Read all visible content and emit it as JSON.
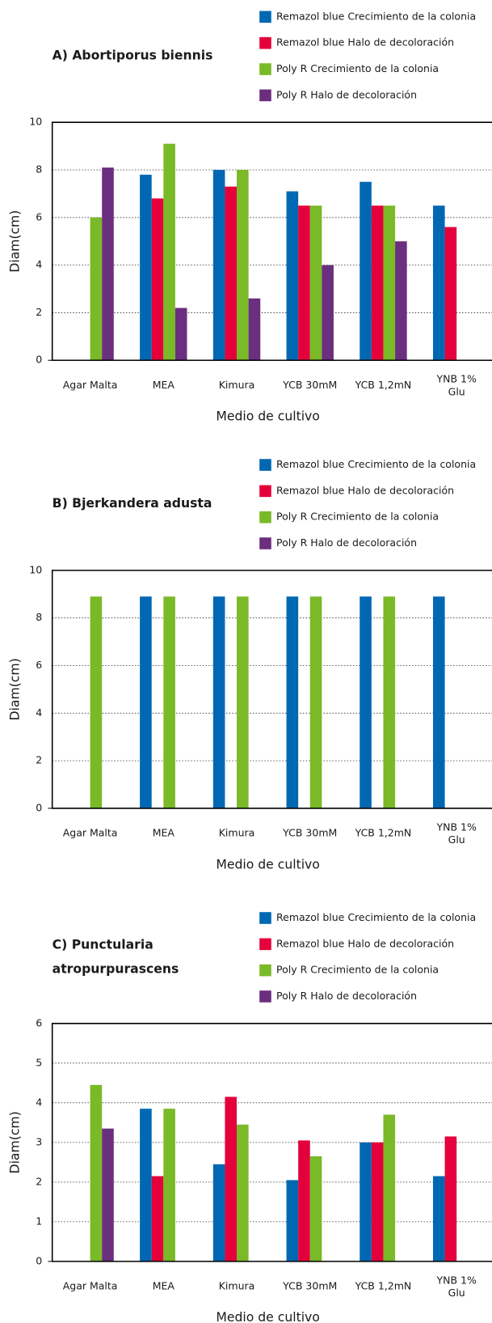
{
  "chart_data": [
    {
      "type": "bar",
      "title": "A) Abortiporus biennis",
      "x_label": "Medio de cultivo",
      "y_label": "Diam(cm)",
      "categories": [
        "Agar Malta",
        "MEA",
        "Kimura",
        "YCB 30mM",
        "YCB 1,2mN",
        "YNB 1%\nGlu"
      ],
      "series": [
        {
          "name": "Remazol blue Crecimiento de la colonia",
          "color": "#0068b3",
          "values": [
            null,
            7.8,
            8.0,
            7.1,
            7.5,
            6.5
          ]
        },
        {
          "name": "Remazol blue Halo de decoloración",
          "color": "#e4003a",
          "values": [
            null,
            6.8,
            7.3,
            6.5,
            6.5,
            5.6
          ]
        },
        {
          "name": "Poly R Crecimiento de la colonia",
          "color": "#7ab928",
          "values": [
            6.0,
            9.1,
            8.0,
            6.5,
            6.5,
            null
          ]
        },
        {
          "name": "Poly R Halo de decoloración",
          "color": "#6b2f7f",
          "values": [
            8.1,
            2.2,
            2.6,
            4.0,
            5.0,
            null
          ]
        }
      ],
      "ylim": [
        0,
        10
      ],
      "yticks": [
        0,
        2,
        4,
        6,
        8,
        10
      ],
      "grid": true
    },
    {
      "type": "bar",
      "title": "B) Bjerkandera adusta",
      "x_label": "Medio de cultivo",
      "y_label": "Diam(cm)",
      "categories": [
        "Agar Malta",
        "MEA",
        "Kimura",
        "YCB 30mM",
        "YCB 1,2mN",
        "YNB 1%\nGlu"
      ],
      "series": [
        {
          "name": "Remazol blue Crecimiento de la colonia",
          "color": "#0068b3",
          "values": [
            null,
            8.9,
            8.9,
            8.9,
            8.9,
            8.9
          ]
        },
        {
          "name": "Remazol blue Halo de decoloración",
          "color": "#e4003a",
          "values": [
            null,
            null,
            null,
            null,
            null,
            null
          ]
        },
        {
          "name": "Poly R Crecimiento de la colonia",
          "color": "#7ab928",
          "values": [
            8.9,
            8.9,
            8.9,
            8.9,
            8.9,
            null
          ]
        },
        {
          "name": "Poly R Halo de decoloración",
          "color": "#6b2f7f",
          "values": [
            null,
            null,
            null,
            null,
            null,
            null
          ]
        }
      ],
      "ylim": [
        0,
        10
      ],
      "yticks": [
        0,
        2,
        4,
        6,
        8,
        10
      ],
      "grid": true
    },
    {
      "type": "bar",
      "title": "C) Punctularia\natropurpurascens",
      "x_label": "Medio de cultivo",
      "y_label": "Diam(cm)",
      "categories": [
        "Agar Malta",
        "MEA",
        "Kimura",
        "YCB 30mM",
        "YCB 1,2mN",
        "YNB 1%\nGlu"
      ],
      "series": [
        {
          "name": "Remazol blue Crecimiento de la colonia",
          "color": "#0068b3",
          "values": [
            null,
            3.85,
            2.45,
            2.05,
            3.0,
            2.15
          ]
        },
        {
          "name": "Remazol blue Halo de decoloración",
          "color": "#e4003a",
          "values": [
            null,
            2.15,
            4.15,
            3.05,
            3.0,
            3.15
          ]
        },
        {
          "name": "Poly R Crecimiento de la colonia",
          "color": "#7ab928",
          "values": [
            4.45,
            3.85,
            3.45,
            2.65,
            3.7,
            null
          ]
        },
        {
          "name": "Poly R Halo de decoloración",
          "color": "#6b2f7f",
          "values": [
            3.35,
            null,
            null,
            null,
            null,
            null
          ]
        }
      ],
      "ylim": [
        0,
        6
      ],
      "yticks": [
        0,
        1,
        2,
        3,
        4,
        5,
        6
      ],
      "grid": true
    }
  ]
}
